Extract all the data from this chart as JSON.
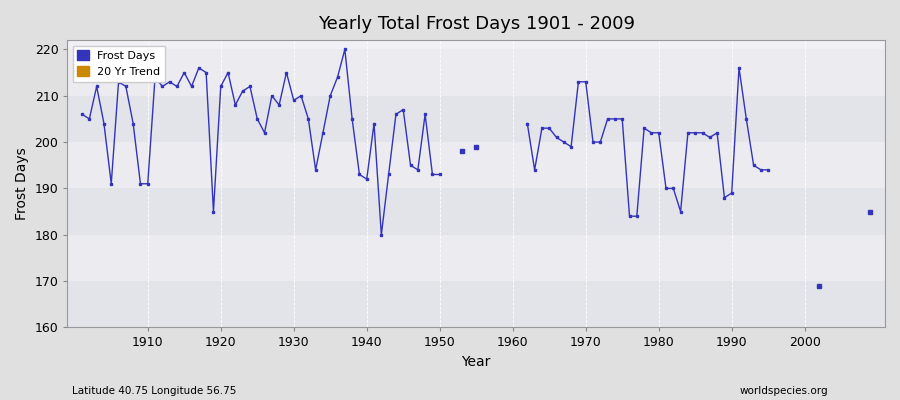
{
  "title": "Yearly Total Frost Days 1901 - 2009",
  "xlabel": "Year",
  "ylabel": "Frost Days",
  "subtitle_left": "Latitude 40.75 Longitude 56.75",
  "subtitle_right": "worldspecies.org",
  "ylim": [
    160,
    222
  ],
  "yticks": [
    160,
    170,
    180,
    190,
    200,
    210,
    220
  ],
  "line_color": "#3333bb",
  "bg_color": "#e0e0e0",
  "plot_bg_color": "#f0f0f5",
  "band_color_dark": "#e2e4ea",
  "band_color_light": "#ebebf0",
  "legend_frost_color": "#3333bb",
  "legend_trend_color": "#cc8800",
  "years": [
    1901,
    1902,
    1903,
    1904,
    1905,
    1906,
    1907,
    1908,
    1909,
    1910,
    1911,
    1912,
    1913,
    1914,
    1915,
    1916,
    1917,
    1918,
    1919,
    1920,
    1921,
    1922,
    1923,
    1924,
    1925,
    1926,
    1927,
    1928,
    1929,
    1930,
    1931,
    1932,
    1933,
    1934,
    1935,
    1936,
    1937,
    1938,
    1939,
    1940,
    1941,
    1942,
    1943,
    1944,
    1945,
    1946,
    1947,
    1948,
    1949,
    1950,
    1951,
    1952,
    1953,
    1954,
    1955,
    1956,
    1957,
    1958,
    1959,
    1960,
    1961,
    1962,
    1963,
    1964,
    1965,
    1966,
    1967,
    1968,
    1969,
    1970,
    1971,
    1972,
    1973,
    1974,
    1975,
    1976,
    1977,
    1978,
    1979,
    1980,
    1981,
    1982,
    1983,
    1984,
    1985,
    1986,
    1987,
    1988,
    1989,
    1990,
    1991,
    1992,
    1993,
    1994,
    1995,
    1996,
    1997,
    1998,
    1999,
    2000,
    2001,
    2002,
    2003,
    2004,
    2005,
    2006,
    2007,
    2008,
    2009
  ],
  "values": [
    206,
    205,
    212,
    204,
    191,
    213,
    212,
    204,
    191,
    191,
    214,
    212,
    213,
    212,
    215,
    212,
    216,
    215,
    185,
    212,
    215,
    208,
    211,
    212,
    205,
    202,
    210,
    208,
    215,
    209,
    210,
    205,
    194,
    202,
    210,
    214,
    220,
    205,
    193,
    192,
    204,
    180,
    193,
    206,
    207,
    195,
    194,
    206,
    193,
    193,
    null,
    null,
    198,
    null,
    199,
    null,
    null,
    null,
    null,
    null,
    null,
    204,
    194,
    203,
    203,
    201,
    200,
    199,
    213,
    213,
    200,
    200,
    205,
    205,
    205,
    184,
    184,
    203,
    202,
    202,
    190,
    190,
    185,
    202,
    202,
    202,
    201,
    202,
    188,
    189,
    216,
    205,
    195,
    194,
    194,
    null,
    null,
    null,
    null,
    null,
    null,
    169,
    null,
    null,
    null,
    null,
    null,
    null,
    185
  ]
}
